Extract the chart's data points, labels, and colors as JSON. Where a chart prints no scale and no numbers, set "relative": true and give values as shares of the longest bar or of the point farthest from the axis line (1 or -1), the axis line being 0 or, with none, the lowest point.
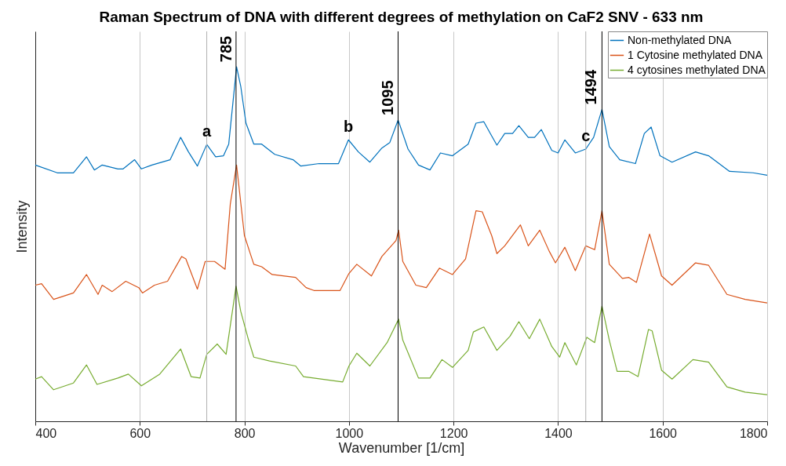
{
  "chart_data": {
    "type": "line",
    "title": "Raman Spectrum of DNA with different degrees of methylation on CaF2 SNV - 633 nm",
    "xlabel": "Wavenumber [1/cm]",
    "ylabel": "Intensity",
    "relative": true,
    "xlim": [
      400,
      1800
    ],
    "xticks": [
      400,
      600,
      800,
      1000,
      1200,
      1400,
      1600,
      1800
    ],
    "grid": "x",
    "legend": "top right",
    "tick_labels": "x",
    "line_style": "solid",
    "marker": "none",
    "series": [
      {
        "name": "Non-methylated DNA",
        "color": "#0072bd",
        "x": [
          400,
          442,
          473,
          498,
          513,
          528,
          558,
          568,
          590,
          603,
          623,
          658,
          678,
          693,
          710,
          728,
          745,
          760,
          770,
          785,
          793,
          803,
          818,
          833,
          858,
          893,
          908,
          943,
          980,
          999,
          1018,
          1040,
          1063,
          1078,
          1094,
          1113,
          1133,
          1155,
          1175,
          1198,
          1228,
          1243,
          1258,
          1273,
          1283,
          1298,
          1313,
          1325,
          1343,
          1355,
          1368,
          1388,
          1400,
          1413,
          1433,
          1453,
          1468,
          1484,
          1498,
          1518,
          1548,
          1565,
          1578,
          1595,
          1618,
          1663,
          1688,
          1728,
          1773,
          1800
        ],
        "values": [
          0.723,
          0.701,
          0.701,
          0.746,
          0.709,
          0.723,
          0.712,
          0.712,
          0.738,
          0.712,
          0.723,
          0.738,
          0.801,
          0.76,
          0.72,
          0.781,
          0.746,
          0.749,
          0.782,
          1.0,
          0.945,
          0.841,
          0.782,
          0.782,
          0.753,
          0.738,
          0.72,
          0.727,
          0.727,
          0.794,
          0.76,
          0.731,
          0.771,
          0.786,
          0.85,
          0.768,
          0.723,
          0.709,
          0.757,
          0.749,
          0.782,
          0.841,
          0.845,
          0.805,
          0.779,
          0.812,
          0.812,
          0.834,
          0.801,
          0.801,
          0.823,
          0.764,
          0.757,
          0.794,
          0.757,
          0.768,
          0.801,
          0.88,
          0.775,
          0.738,
          0.727,
          0.812,
          0.83,
          0.749,
          0.731,
          0.76,
          0.749,
          0.705,
          0.701,
          0.694
        ]
      },
      {
        "name": "1 Cytosine methylated DNA",
        "color": "#d95319",
        "x": [
          400,
          412,
          435,
          473,
          498,
          520,
          528,
          547,
          573,
          598,
          605,
          628,
          653,
          680,
          688,
          710,
          725,
          743,
          763,
          773,
          785,
          800,
          813,
          818,
          833,
          853,
          898,
          918,
          933,
          983,
          1000,
          1015,
          1043,
          1063,
          1090,
          1095,
          1103,
          1128,
          1148,
          1173,
          1198,
          1223,
          1243,
          1255,
          1273,
          1283,
          1298,
          1328,
          1343,
          1365,
          1383,
          1395,
          1413,
          1433,
          1453,
          1470,
          1484,
          1498,
          1523,
          1535,
          1550,
          1575,
          1598,
          1618,
          1663,
          1688,
          1723,
          1758,
          1800
        ],
        "values": [
          0.384,
          0.388,
          0.344,
          0.362,
          0.414,
          0.358,
          0.384,
          0.366,
          0.395,
          0.377,
          0.362,
          0.384,
          0.395,
          0.465,
          0.458,
          0.373,
          0.451,
          0.451,
          0.429,
          0.613,
          0.723,
          0.524,
          0.465,
          0.443,
          0.436,
          0.414,
          0.406,
          0.377,
          0.369,
          0.369,
          0.417,
          0.443,
          0.41,
          0.465,
          0.51,
          0.539,
          0.451,
          0.384,
          0.377,
          0.432,
          0.414,
          0.458,
          0.594,
          0.591,
          0.524,
          0.473,
          0.495,
          0.554,
          0.495,
          0.539,
          0.48,
          0.447,
          0.491,
          0.425,
          0.495,
          0.484,
          0.594,
          0.443,
          0.403,
          0.406,
          0.392,
          0.528,
          0.41,
          0.384,
          0.447,
          0.44,
          0.358,
          0.344,
          0.334
        ]
      },
      {
        "name": "4 cytosines methylated DNA",
        "color": "#77ac30",
        "x": [
          400,
          412,
          435,
          473,
          498,
          518,
          558,
          578,
          603,
          638,
          678,
          698,
          715,
          728,
          748,
          765,
          784,
          793,
          808,
          818,
          848,
          898,
          913,
          988,
          1000,
          1015,
          1040,
          1073,
          1095,
          1103,
          1133,
          1155,
          1178,
          1198,
          1228,
          1238,
          1258,
          1283,
          1308,
          1325,
          1345,
          1365,
          1388,
          1403,
          1413,
          1435,
          1455,
          1470,
          1484,
          1498,
          1513,
          1535,
          1553,
          1573,
          1580,
          1598,
          1618,
          1658,
          1688,
          1723,
          1758,
          1800
        ],
        "values": [
          0.119,
          0.126,
          0.089,
          0.108,
          0.159,
          0.104,
          0.122,
          0.133,
          0.1,
          0.133,
          0.204,
          0.126,
          0.122,
          0.189,
          0.218,
          0.189,
          0.381,
          0.31,
          0.229,
          0.181,
          0.17,
          0.156,
          0.126,
          0.111,
          0.156,
          0.192,
          0.156,
          0.222,
          0.288,
          0.229,
          0.122,
          0.122,
          0.174,
          0.152,
          0.2,
          0.252,
          0.266,
          0.2,
          0.24,
          0.281,
          0.233,
          0.288,
          0.211,
          0.181,
          0.222,
          0.159,
          0.237,
          0.222,
          0.325,
          0.229,
          0.141,
          0.141,
          0.126,
          0.259,
          0.255,
          0.144,
          0.119,
          0.174,
          0.167,
          0.097,
          0.082,
          0.075
        ]
      }
    ],
    "ref_lines": [
      {
        "axis": "x",
        "value": 728,
        "color": "#b0b0b0"
      },
      {
        "axis": "x",
        "value": 784,
        "color": "#000000"
      },
      {
        "axis": "x",
        "value": 1094,
        "color": "#000000"
      },
      {
        "axis": "x",
        "value": 1453,
        "color": "#b0b0b0"
      },
      {
        "axis": "x",
        "value": 1484,
        "color": "#000000"
      }
    ],
    "annotations": [
      {
        "text": "785",
        "x": 785,
        "y": 1.0
      },
      {
        "text": "1095",
        "x": 1094,
        "y": 0.85
      },
      {
        "text": "1494",
        "x": 1484,
        "y": 0.88
      },
      {
        "text": "a",
        "x": 728,
        "y": 0.781
      },
      {
        "text": "b",
        "x": 999,
        "y": 0.794
      },
      {
        "text": "c",
        "x": 1453,
        "y": 0.768
      }
    ]
  }
}
